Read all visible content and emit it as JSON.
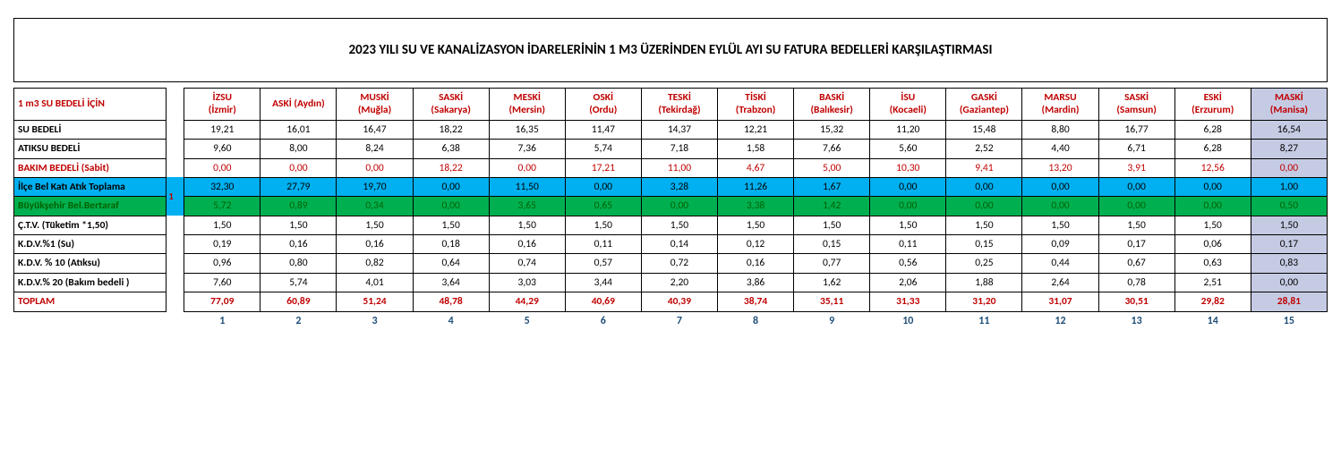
{
  "title": "2023 YILI SU VE KANALİZASYON İDARELERİNİN 1 M3 ÜZERİNDEN EYLÜL AYI SU FATURA BEDELLERİ KARŞILAŞTIRMASI",
  "header_label": "1 m3 SU BEDELİ İÇİN",
  "note_marker": "1",
  "columns": [
    {
      "l1": "İZSU",
      "l2": "(İzmir)"
    },
    {
      "l1": "ASKİ (Aydın)",
      "l2": ""
    },
    {
      "l1": "MUSKİ",
      "l2": "(Muğla)"
    },
    {
      "l1": "SASKİ",
      "l2": "(Sakarya)"
    },
    {
      "l1": "MESKİ",
      "l2": "(Mersin)"
    },
    {
      "l1": "OSKİ",
      "l2": "(Ordu)"
    },
    {
      "l1": "TESKİ",
      "l2": "(Tekirdağ)"
    },
    {
      "l1": "TİSKİ",
      "l2": "(Trabzon)"
    },
    {
      "l1": "BASKİ",
      "l2": "(Balıkesir)"
    },
    {
      "l1": "İSU",
      "l2": "(Kocaeli)"
    },
    {
      "l1": "GASKİ",
      "l2": "(Gaziantep)"
    },
    {
      "l1": "MARSU",
      "l2": "(Mardin)"
    },
    {
      "l1": "SASKİ",
      "l2": "(Samsun)"
    },
    {
      "l1": "ESKİ",
      "l2": "(Erzurum)"
    },
    {
      "l1": "MASKİ",
      "l2": "(Manisa)"
    }
  ],
  "rows": [
    {
      "label": "SU BEDELİ",
      "style": "plain",
      "label_color": "",
      "cells": [
        "19,21",
        "16,01",
        "16,47",
        "18,22",
        "16,35",
        "11,47",
        "14,37",
        "12,21",
        "15,32",
        "11,20",
        "15,48",
        "8,80",
        "16,77",
        "6,28",
        "16,54"
      ]
    },
    {
      "label": "ATIKSU BEDELİ",
      "style": "plain",
      "label_color": "",
      "cells": [
        "9,60",
        "8,00",
        "8,24",
        "6,38",
        "7,36",
        "5,74",
        "7,18",
        "1,58",
        "7,66",
        "5,60",
        "2,52",
        "4,40",
        "6,71",
        "6,28",
        "8,27"
      ]
    },
    {
      "label": "BAKIM BEDELİ (Sabit)",
      "style": "plain",
      "label_color": "red",
      "cell_color": "red",
      "cells": [
        "0,00",
        "0,00",
        "0,00",
        "18,22",
        "0,00",
        "17,21",
        "11,00",
        "4,67",
        "5,00",
        "10,30",
        "9,41",
        "13,20",
        "3,91",
        "12,56",
        "0,00"
      ]
    },
    {
      "label": "İlçe Bel Katı Atık Toplama",
      "style": "row-blue",
      "label_color": "",
      "note": true,
      "cells": [
        "32,30",
        "27,79",
        "19,70",
        "0,00",
        "11,50",
        "0,00",
        "3,28",
        "11,26",
        "1,67",
        "0,00",
        "0,00",
        "0,00",
        "0,00",
        "0,00",
        "1,00"
      ]
    },
    {
      "label": "Büyükşehir Bel.Bertaraf",
      "style": "row-green",
      "label_color": "green",
      "cell_color": "green",
      "note": true,
      "cells": [
        "5,72",
        "0,89",
        "0,34",
        "0,00",
        "3,65",
        "0,65",
        "0,00",
        "3,38",
        "1,42",
        "0,00",
        "0,00",
        "0,00",
        "0,00",
        "0,00",
        "0,50"
      ]
    },
    {
      "label": "Ç.T.V. (Tüketim *1,50)",
      "style": "plain",
      "label_color": "",
      "cells": [
        "1,50",
        "1,50",
        "1,50",
        "1,50",
        "1,50",
        "1,50",
        "1,50",
        "1,50",
        "1,50",
        "1,50",
        "1,50",
        "1,50",
        "1,50",
        "1,50",
        "1,50"
      ]
    },
    {
      "label": "K.D.V.%1 (Su)",
      "style": "plain",
      "label_color": "",
      "cells": [
        "0,19",
        "0,16",
        "0,16",
        "0,18",
        "0,16",
        "0,11",
        "0,14",
        "0,12",
        "0,15",
        "0,11",
        "0,15",
        "0,09",
        "0,17",
        "0,06",
        "0,17"
      ]
    },
    {
      "label": "K.D.V. % 10 (Atıksu)",
      "style": "plain",
      "label_color": "",
      "cells": [
        "0,96",
        "0,80",
        "0,82",
        "0,64",
        "0,74",
        "0,57",
        "0,72",
        "0,16",
        "0,77",
        "0,56",
        "0,25",
        "0,44",
        "0,67",
        "0,63",
        "0,83"
      ]
    },
    {
      "label": "K.D.V.% 20 (Bakım bedeli )",
      "style": "plain",
      "label_color": "",
      "cells": [
        "7,60",
        "5,74",
        "4,01",
        "3,64",
        "3,03",
        "3,44",
        "2,20",
        "3,86",
        "1,62",
        "2,06",
        "1,88",
        "2,64",
        "0,78",
        "2,51",
        "0,00"
      ]
    },
    {
      "label": "TOPLAM",
      "style": "plain",
      "label_color": "red",
      "cell_color": "red",
      "bold": true,
      "cells": [
        "77,09",
        "60,89",
        "51,24",
        "48,78",
        "44,29",
        "40,69",
        "40,39",
        "38,74",
        "35,11",
        "31,33",
        "31,20",
        "31,07",
        "30,51",
        "29,82",
        "28,81"
      ]
    }
  ],
  "footer": [
    "1",
    "2",
    "3",
    "4",
    "5",
    "6",
    "7",
    "8",
    "9",
    "10",
    "11",
    "12",
    "13",
    "14",
    "15"
  ],
  "colors": {
    "red": "#c00000",
    "blue": "#1f4e79",
    "green": "#006100",
    "row_blue": "#00b0f0",
    "row_green": "#00b050",
    "maski_bg": "#c5cbe3",
    "border": "#000000",
    "background": "#ffffff"
  },
  "fonts": {
    "family": "Calibri",
    "title_size": 15,
    "cell_size": 11.5
  }
}
